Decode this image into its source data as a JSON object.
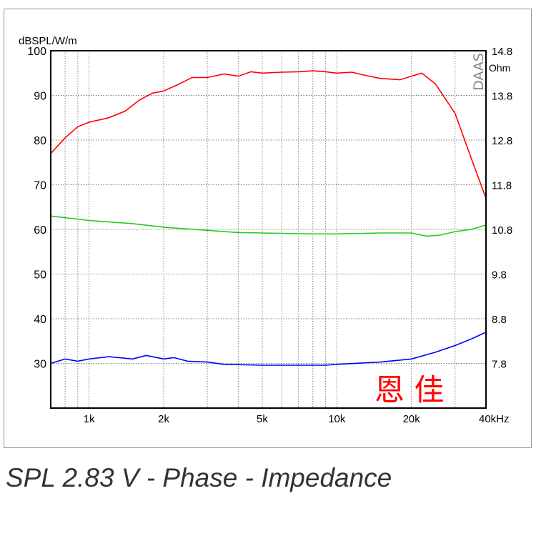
{
  "caption": "SPL 2.83 V - Phase - Impedance",
  "chart_data": {
    "type": "line",
    "title": "SPL 2.83 V - Phase - Impedance",
    "ylabel": "dBSPL/W/m",
    "y2label": "Ohm",
    "xlabel": "kHz",
    "xscale": "log",
    "xlim": [
      700,
      40000
    ],
    "ylim": [
      20,
      100
    ],
    "y2lim": [
      6.8,
      14.8
    ],
    "grid": true,
    "watermark": "DAAS",
    "stamp": "恩 佳",
    "x_ticks": [
      {
        "v": 1000,
        "label": "1k"
      },
      {
        "v": 2000,
        "label": "2k"
      },
      {
        "v": 5000,
        "label": "5k"
      },
      {
        "v": 10000,
        "label": "10k"
      },
      {
        "v": 20000,
        "label": "20k"
      },
      {
        "v": 40000,
        "label": "40kHz"
      }
    ],
    "x_grid": [
      800,
      900,
      1000,
      2000,
      3000,
      4000,
      5000,
      6000,
      7000,
      8000,
      9000,
      10000,
      20000,
      30000
    ],
    "y_ticks": [
      100,
      90,
      80,
      70,
      60,
      50,
      40,
      30
    ],
    "y2_ticks": [
      "14.8",
      "13.8",
      "12.8",
      "11.8",
      "10.8",
      "9.8",
      "8.8",
      "7.8"
    ],
    "series": [
      {
        "color": "#ff0000",
        "x": [
          700,
          800,
          900,
          1000,
          1200,
          1400,
          1600,
          1800,
          2000,
          2300,
          2600,
          3000,
          3500,
          4000,
          4500,
          5000,
          6000,
          7000,
          8000,
          9000,
          10000,
          11500,
          13000,
          15000,
          18000,
          20000,
          22000,
          25000,
          28000,
          30000,
          35000,
          40000
        ],
        "y": [
          77,
          80.5,
          83,
          84,
          85,
          86.5,
          89,
          90.5,
          91,
          92.5,
          94,
          94,
          94.8,
          94.3,
          95.3,
          95,
          95.2,
          95.3,
          95.5,
          95.3,
          95,
          95.2,
          94.5,
          93.8,
          93.5,
          94.3,
          95,
          92.6,
          88.5,
          86,
          75.7,
          67
        ]
      },
      {
        "color": "#22cc22",
        "x": [
          700,
          1000,
          1500,
          2000,
          3000,
          4000,
          5000,
          8000,
          10000,
          15000,
          20000,
          23000,
          26000,
          30000,
          35000,
          40000
        ],
        "y": [
          63,
          62,
          61.3,
          60.5,
          59.8,
          59.3,
          59.2,
          59,
          59,
          59.2,
          59.2,
          58.5,
          58.7,
          59.5,
          60,
          61
        ]
      },
      {
        "color": "#0000ff",
        "x": [
          700,
          800,
          900,
          1000,
          1200,
          1500,
          1700,
          2000,
          2200,
          2500,
          3000,
          3500,
          5000,
          9000,
          10000,
          15000,
          20000,
          25000,
          30000,
          35000,
          40000
        ],
        "y": [
          30,
          31,
          30.5,
          31,
          31.5,
          31,
          31.8,
          31,
          31.3,
          30.5,
          30.3,
          29.8,
          29.6,
          29.6,
          29.8,
          30.3,
          31,
          32.5,
          34,
          35.5,
          37
        ]
      }
    ]
  }
}
